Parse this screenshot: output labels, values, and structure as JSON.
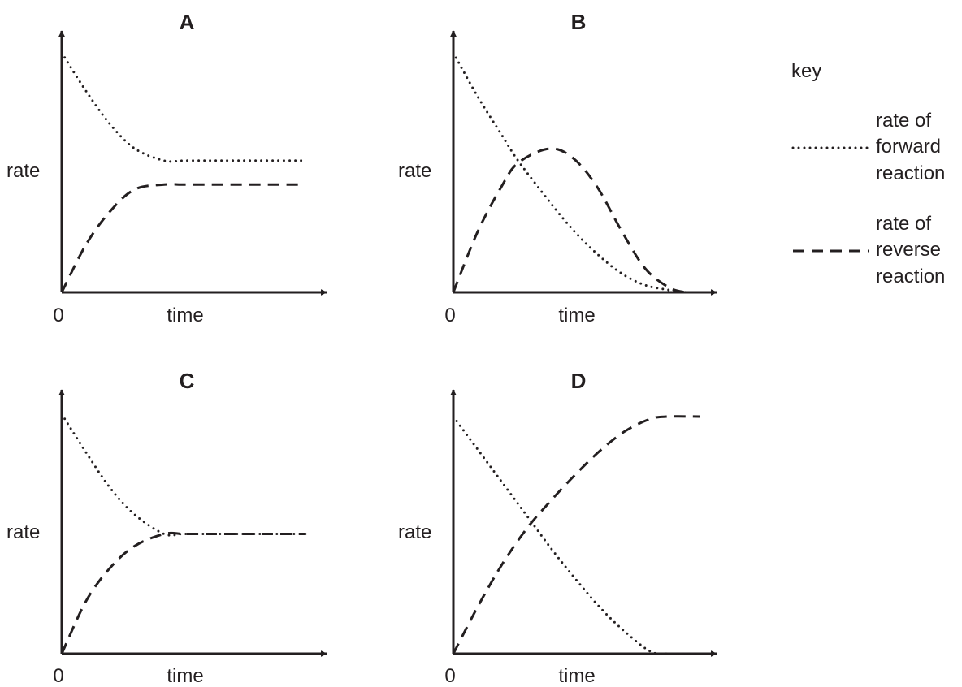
{
  "chart_data": [
    {
      "type": "line",
      "title": "A",
      "xlabel": "time",
      "ylabel": "rate",
      "x_tick_labels": [
        "0"
      ],
      "x": [
        0,
        0.1,
        0.2,
        0.3,
        0.42,
        0.5,
        0.6,
        0.7,
        0.8,
        0.9,
        1.0
      ],
      "series": [
        {
          "key": "forward",
          "values": [
            1.0,
            0.84,
            0.7,
            0.6,
            0.55,
            0.55,
            0.55,
            0.55,
            0.55,
            0.55,
            0.55
          ]
        },
        {
          "key": "reverse",
          "values": [
            0.0,
            0.2,
            0.34,
            0.43,
            0.45,
            0.45,
            0.45,
            0.45,
            0.45,
            0.45,
            0.45
          ]
        }
      ],
      "xlim": [
        0,
        1
      ],
      "ylim": [
        0,
        1
      ]
    },
    {
      "type": "line",
      "title": "B",
      "xlabel": "time",
      "ylabel": "rate",
      "x_tick_labels": [
        "0"
      ],
      "x": [
        0,
        0.1,
        0.2,
        0.27,
        0.4,
        0.5,
        0.6,
        0.7,
        0.8,
        0.9,
        0.97
      ],
      "series": [
        {
          "key": "forward",
          "values": [
            1.0,
            0.82,
            0.66,
            0.55,
            0.38,
            0.26,
            0.16,
            0.08,
            0.03,
            0.01,
            0.0
          ]
        },
        {
          "key": "reverse",
          "values": [
            0.0,
            0.25,
            0.44,
            0.54,
            0.6,
            0.56,
            0.44,
            0.26,
            0.1,
            0.02,
            0.0
          ]
        }
      ],
      "xlim": [
        0,
        1
      ],
      "ylim": [
        0,
        1
      ]
    },
    {
      "type": "line",
      "title": "C",
      "xlabel": "time",
      "ylabel": "rate",
      "x_tick_labels": [
        "0"
      ],
      "x": [
        0,
        0.1,
        0.2,
        0.3,
        0.42,
        0.5,
        0.6,
        0.7,
        0.8,
        0.9,
        1.0
      ],
      "series": [
        {
          "key": "forward",
          "values": [
            1.0,
            0.84,
            0.69,
            0.58,
            0.5,
            0.5,
            0.5,
            0.5,
            0.5,
            0.5,
            0.5
          ]
        },
        {
          "key": "reverse",
          "values": [
            0.0,
            0.22,
            0.36,
            0.45,
            0.5,
            0.5,
            0.5,
            0.5,
            0.5,
            0.5,
            0.5
          ]
        }
      ],
      "xlim": [
        0,
        1
      ],
      "ylim": [
        0,
        1
      ]
    },
    {
      "type": "line",
      "title": "D",
      "xlabel": "time",
      "ylabel": "rate",
      "x_tick_labels": [
        "0"
      ],
      "x": [
        0,
        0.1,
        0.2,
        0.3,
        0.4,
        0.5,
        0.6,
        0.7,
        0.8,
        0.87,
        1.0
      ],
      "series": [
        {
          "key": "forward",
          "values": [
            1.0,
            0.86,
            0.72,
            0.58,
            0.44,
            0.31,
            0.19,
            0.09,
            0.01,
            0.0,
            0.0
          ]
        },
        {
          "key": "reverse",
          "values": [
            0.0,
            0.2,
            0.38,
            0.53,
            0.65,
            0.76,
            0.86,
            0.94,
            0.99,
            1.0,
            1.0
          ]
        }
      ],
      "xlim": [
        0,
        1
      ],
      "ylim": [
        0,
        1
      ]
    }
  ],
  "legend": {
    "title": "key",
    "placement": "right",
    "entries": [
      {
        "key": "forward",
        "line1": "rate of",
        "line2": "forward",
        "line3": "reaction",
        "style": "dotted"
      },
      {
        "key": "reverse",
        "line1": "rate of",
        "line2": "reverse",
        "line3": "reaction",
        "style": "dashed"
      }
    ]
  },
  "colors": {
    "ink": "#231f20",
    "background": "#ffffff"
  }
}
